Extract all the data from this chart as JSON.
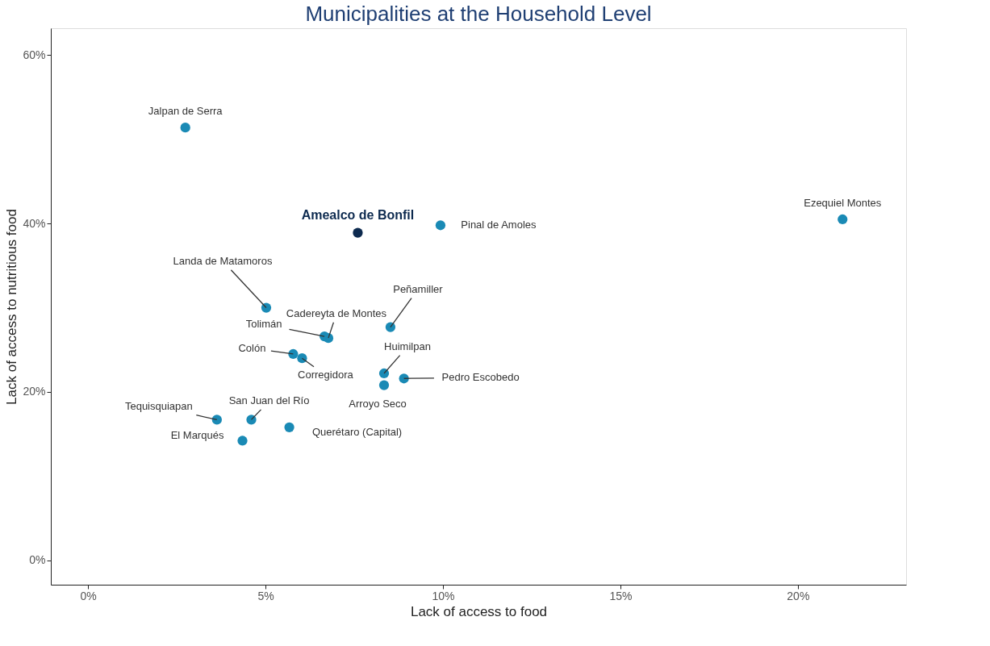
{
  "chart_data": {
    "type": "scatter",
    "title": "Municipalities at the Household Level",
    "xlabel": "Lack of access to food",
    "ylabel": "Lack of access to nutritious food",
    "series": [
      {
        "x": [
          2.74,
          7.6,
          9.93,
          21.26,
          5.02,
          6.66,
          6.77,
          8.52,
          5.78,
          6.03,
          8.34,
          8.9,
          8.34,
          3.63,
          4.6,
          4.35,
          5.67
        ],
        "values": [
          51.4,
          38.9,
          39.8,
          40.5,
          30.0,
          26.6,
          26.4,
          27.7,
          24.5,
          24.0,
          22.2,
          21.6,
          20.8,
          16.7,
          16.7,
          14.2,
          15.8
        ],
        "colors": [
          "#1a8ab5",
          "#0d2a4f",
          "#1a8ab5",
          "#1a8ab5",
          "#1a8ab5",
          "#1a8ab5",
          "#1a8ab5",
          "#1a8ab5",
          "#1a8ab5",
          "#1a8ab5",
          "#1a8ab5",
          "#1a8ab5",
          "#1a8ab5",
          "#1a8ab5",
          "#1a8ab5",
          "#1a8ab5",
          "#1a8ab5"
        ]
      }
    ],
    "annotations": [
      {
        "text": "Jalpan de Serra",
        "x": 2.74,
        "y": 51.4
      },
      {
        "text": "Amealco de Bonfil",
        "x": 7.6,
        "y": 38.9
      },
      {
        "text": "Pinal de Amoles",
        "x": 9.93,
        "y": 39.8
      },
      {
        "text": "Ezequiel Montes",
        "x": 21.26,
        "y": 40.5
      },
      {
        "text": "Landa de Matamoros",
        "x": 5.02,
        "y": 30.0
      },
      {
        "text": "Tolimán",
        "x": 6.66,
        "y": 26.6
      },
      {
        "text": "Cadereyta de Montes",
        "x": 6.77,
        "y": 26.4
      },
      {
        "text": "Peñamiller",
        "x": 8.52,
        "y": 27.7
      },
      {
        "text": "Colón",
        "x": 5.78,
        "y": 24.5
      },
      {
        "text": "Corregidora",
        "x": 6.03,
        "y": 24.0
      },
      {
        "text": "Huimilpan",
        "x": 8.34,
        "y": 22.2
      },
      {
        "text": "Pedro Escobedo",
        "x": 8.9,
        "y": 21.6
      },
      {
        "text": "Arroyo Seco",
        "x": 8.34,
        "y": 20.8
      },
      {
        "text": "Tequisquiapan",
        "x": 3.63,
        "y": 16.7
      },
      {
        "text": "San Juan del Río",
        "x": 4.6,
        "y": 16.7
      },
      {
        "text": "El Marqués",
        "x": 4.35,
        "y": 14.2
      },
      {
        "text": "Querétaro (Capital)",
        "x": 5.67,
        "y": 15.8
      }
    ],
    "xlim": [
      -1.05,
      23.05
    ],
    "ylim": [
      -2.9,
      63.2
    ],
    "xticks": [
      {
        "value": 0,
        "label": "0%"
      },
      {
        "value": 5,
        "label": "5%"
      },
      {
        "value": 10,
        "label": "10%"
      },
      {
        "value": 15,
        "label": "15%"
      },
      {
        "value": 20,
        "label": "20%"
      }
    ],
    "yticks": [
      {
        "value": 0,
        "label": "0%"
      },
      {
        "value": 20,
        "label": "20%"
      },
      {
        "value": 40,
        "label": "40%"
      },
      {
        "value": 60,
        "label": "60%"
      }
    ],
    "grid": false,
    "legend": false,
    "marker": "circle"
  }
}
